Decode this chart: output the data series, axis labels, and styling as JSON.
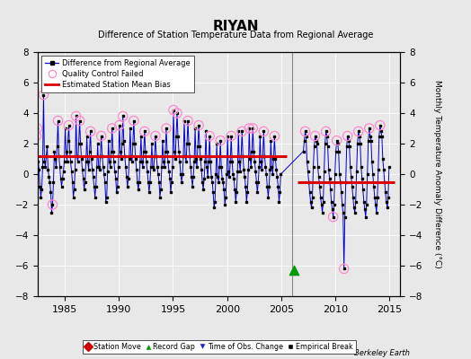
{
  "title": "RIYAN",
  "subtitle": "Difference of Station Temperature Data from Regional Average",
  "ylabel": "Monthly Temperature Anomaly Difference (°C)",
  "xlim": [
    1982.5,
    2016.0
  ],
  "ylim": [
    -8,
    8
  ],
  "yticks": [
    -8,
    -6,
    -4,
    -2,
    0,
    2,
    4,
    6,
    8
  ],
  "xticks": [
    1985,
    1990,
    1995,
    2000,
    2005,
    2010,
    2015
  ],
  "background_color": "#e8e8e8",
  "line_color": "#0000cc",
  "dot_color": "#000000",
  "qc_circle_color": "#ff88cc",
  "bias_color": "#dd0000",
  "vertical_line_x": 2006.0,
  "bias_segments": [
    {
      "x_start": 1982.5,
      "x_end": 2005.5,
      "y": 1.2
    },
    {
      "x_start": 2006.5,
      "x_end": 2015.5,
      "y": -0.55
    }
  ],
  "record_gap_x": 2006.2,
  "record_gap_y": -6.3,
  "watermark": "Berkeley Earth",
  "main_data": [
    [
      1982.042,
      2.8
    ],
    [
      1982.125,
      0.2
    ],
    [
      1982.208,
      -0.3
    ],
    [
      1982.292,
      0.5
    ],
    [
      1982.375,
      2.5
    ],
    [
      1982.458,
      3.0
    ],
    [
      1982.542,
      0.8
    ],
    [
      1982.625,
      0.3
    ],
    [
      1982.708,
      -0.8
    ],
    [
      1982.792,
      -1.5
    ],
    [
      1982.875,
      -1.0
    ],
    [
      1982.958,
      0.5
    ],
    [
      1983.042,
      5.2
    ],
    [
      1983.125,
      0.8
    ],
    [
      1983.208,
      0.5
    ],
    [
      1983.292,
      1.2
    ],
    [
      1983.375,
      1.8
    ],
    [
      1983.458,
      0.3
    ],
    [
      1983.542,
      -0.2
    ],
    [
      1983.625,
      -0.5
    ],
    [
      1983.708,
      -1.2
    ],
    [
      1983.792,
      -2.5
    ],
    [
      1983.875,
      -2.0
    ],
    [
      1983.958,
      -0.5
    ],
    [
      1984.042,
      1.5
    ],
    [
      1984.125,
      1.0
    ],
    [
      1984.208,
      0.5
    ],
    [
      1984.292,
      1.8
    ],
    [
      1984.375,
      3.5
    ],
    [
      1984.458,
      1.2
    ],
    [
      1984.542,
      0.5
    ],
    [
      1984.625,
      -0.3
    ],
    [
      1984.708,
      -0.8
    ],
    [
      1984.792,
      -0.3
    ],
    [
      1984.875,
      0.2
    ],
    [
      1984.958,
      0.8
    ],
    [
      1985.042,
      3.0
    ],
    [
      1985.125,
      1.5
    ],
    [
      1985.208,
      0.8
    ],
    [
      1985.292,
      2.2
    ],
    [
      1985.375,
      3.2
    ],
    [
      1985.458,
      1.5
    ],
    [
      1985.542,
      0.8
    ],
    [
      1985.625,
      0.2
    ],
    [
      1985.708,
      -0.5
    ],
    [
      1985.792,
      -1.5
    ],
    [
      1985.875,
      -1.0
    ],
    [
      1985.958,
      0.3
    ],
    [
      1986.042,
      3.8
    ],
    [
      1986.125,
      1.2
    ],
    [
      1986.208,
      0.8
    ],
    [
      1986.292,
      2.0
    ],
    [
      1986.375,
      3.5
    ],
    [
      1986.458,
      2.0
    ],
    [
      1986.542,
      1.0
    ],
    [
      1986.625,
      0.3
    ],
    [
      1986.708,
      -0.3
    ],
    [
      1986.792,
      -1.0
    ],
    [
      1986.875,
      -0.5
    ],
    [
      1986.958,
      0.8
    ],
    [
      1987.042,
      2.5
    ],
    [
      1987.125,
      0.8
    ],
    [
      1987.208,
      0.3
    ],
    [
      1987.292,
      1.5
    ],
    [
      1987.375,
      2.8
    ],
    [
      1987.458,
      1.0
    ],
    [
      1987.542,
      0.3
    ],
    [
      1987.625,
      -0.2
    ],
    [
      1987.708,
      -0.8
    ],
    [
      1987.792,
      -1.5
    ],
    [
      1987.875,
      -0.8
    ],
    [
      1987.958,
      0.5
    ],
    [
      1988.042,
      2.0
    ],
    [
      1988.125,
      0.5
    ],
    [
      1988.208,
      0.3
    ],
    [
      1988.292,
      1.2
    ],
    [
      1988.375,
      2.5
    ],
    [
      1988.458,
      1.2
    ],
    [
      1988.542,
      0.5
    ],
    [
      1988.625,
      0.0
    ],
    [
      1988.708,
      -0.5
    ],
    [
      1988.792,
      -1.8
    ],
    [
      1988.875,
      -1.5
    ],
    [
      1988.958,
      0.2
    ],
    [
      1989.042,
      2.2
    ],
    [
      1989.125,
      0.8
    ],
    [
      1989.208,
      0.5
    ],
    [
      1989.292,
      1.5
    ],
    [
      1989.375,
      3.0
    ],
    [
      1989.458,
      1.5
    ],
    [
      1989.542,
      0.8
    ],
    [
      1989.625,
      0.2
    ],
    [
      1989.708,
      -0.3
    ],
    [
      1989.792,
      -1.2
    ],
    [
      1989.875,
      -0.8
    ],
    [
      1989.958,
      0.5
    ],
    [
      1990.042,
      3.2
    ],
    [
      1990.125,
      1.5
    ],
    [
      1990.208,
      1.0
    ],
    [
      1990.292,
      2.0
    ],
    [
      1990.375,
      3.8
    ],
    [
      1990.458,
      2.2
    ],
    [
      1990.542,
      1.2
    ],
    [
      1990.625,
      0.5
    ],
    [
      1990.708,
      -0.2
    ],
    [
      1990.792,
      -0.8
    ],
    [
      1990.875,
      -0.3
    ],
    [
      1990.958,
      1.0
    ],
    [
      1991.042,
      3.0
    ],
    [
      1991.125,
      1.2
    ],
    [
      1991.208,
      0.8
    ],
    [
      1991.292,
      2.0
    ],
    [
      1991.375,
      3.5
    ],
    [
      1991.458,
      2.0
    ],
    [
      1991.542,
      1.0
    ],
    [
      1991.625,
      0.3
    ],
    [
      1991.708,
      -0.5
    ],
    [
      1991.792,
      -1.0
    ],
    [
      1991.875,
      -0.5
    ],
    [
      1991.958,
      0.8
    ],
    [
      1992.042,
      2.5
    ],
    [
      1992.125,
      0.8
    ],
    [
      1992.208,
      0.5
    ],
    [
      1992.292,
      1.5
    ],
    [
      1992.375,
      2.8
    ],
    [
      1992.458,
      1.5
    ],
    [
      1992.542,
      0.8
    ],
    [
      1992.625,
      0.2
    ],
    [
      1992.708,
      -0.5
    ],
    [
      1992.792,
      -1.2
    ],
    [
      1992.875,
      -0.5
    ],
    [
      1992.958,
      0.5
    ],
    [
      1993.042,
      2.0
    ],
    [
      1993.125,
      0.5
    ],
    [
      1993.208,
      0.3
    ],
    [
      1993.292,
      1.2
    ],
    [
      1993.375,
      2.5
    ],
    [
      1993.458,
      1.2
    ],
    [
      1993.542,
      0.5
    ],
    [
      1993.625,
      0.0
    ],
    [
      1993.708,
      -0.5
    ],
    [
      1993.792,
      -1.5
    ],
    [
      1993.875,
      -1.0
    ],
    [
      1993.958,
      0.5
    ],
    [
      1994.042,
      2.2
    ],
    [
      1994.125,
      0.8
    ],
    [
      1994.208,
      0.5
    ],
    [
      1994.292,
      1.5
    ],
    [
      1994.375,
      3.0
    ],
    [
      1994.458,
      1.5
    ],
    [
      1994.542,
      0.8
    ],
    [
      1994.625,
      0.2
    ],
    [
      1994.708,
      -0.3
    ],
    [
      1994.792,
      -1.2
    ],
    [
      1994.875,
      -0.5
    ],
    [
      1994.958,
      0.5
    ],
    [
      1995.042,
      4.2
    ],
    [
      1995.125,
      1.5
    ],
    [
      1995.208,
      1.0
    ],
    [
      1995.292,
      2.5
    ],
    [
      1995.375,
      4.0
    ],
    [
      1995.458,
      2.5
    ],
    [
      1995.542,
      1.5
    ],
    [
      1995.625,
      0.8
    ],
    [
      1995.708,
      0.0
    ],
    [
      1995.792,
      -0.5
    ],
    [
      1995.875,
      0.0
    ],
    [
      1995.958,
      1.2
    ],
    [
      1996.042,
      3.5
    ],
    [
      1996.125,
      1.2
    ],
    [
      1996.208,
      0.8
    ],
    [
      1996.292,
      2.0
    ],
    [
      1996.375,
      3.5
    ],
    [
      1996.458,
      2.0
    ],
    [
      1996.542,
      1.2
    ],
    [
      1996.625,
      0.5
    ],
    [
      1996.708,
      -0.2
    ],
    [
      1996.792,
      -0.8
    ],
    [
      1996.875,
      -0.2
    ],
    [
      1996.958,
      0.8
    ],
    [
      1997.042,
      3.0
    ],
    [
      1997.125,
      1.0
    ],
    [
      1997.208,
      0.5
    ],
    [
      1997.292,
      1.8
    ],
    [
      1997.375,
      3.2
    ],
    [
      1997.458,
      1.8
    ],
    [
      1997.542,
      1.0
    ],
    [
      1997.625,
      0.3
    ],
    [
      1997.708,
      -0.5
    ],
    [
      1997.792,
      -1.0
    ],
    [
      1997.875,
      -0.3
    ],
    [
      1997.958,
      0.8
    ],
    [
      1998.042,
      2.8
    ],
    [
      1998.125,
      0.5
    ],
    [
      1998.208,
      -0.2
    ],
    [
      1998.292,
      0.8
    ],
    [
      1998.375,
      2.5
    ],
    [
      1998.458,
      0.8
    ],
    [
      1998.542,
      -0.2
    ],
    [
      1998.625,
      -0.5
    ],
    [
      1998.708,
      -1.2
    ],
    [
      1998.792,
      -2.2
    ],
    [
      1998.875,
      -1.8
    ],
    [
      1998.958,
      0.0
    ],
    [
      1999.042,
      2.0
    ],
    [
      1999.125,
      -0.2
    ],
    [
      1999.208,
      -0.5
    ],
    [
      1999.292,
      0.5
    ],
    [
      1999.375,
      2.2
    ],
    [
      1999.458,
      0.5
    ],
    [
      1999.542,
      -0.3
    ],
    [
      1999.625,
      -0.5
    ],
    [
      1999.708,
      -1.0
    ],
    [
      1999.792,
      -2.0
    ],
    [
      1999.875,
      -1.5
    ],
    [
      1999.958,
      0.0
    ],
    [
      2000.042,
      2.5
    ],
    [
      2000.125,
      0.2
    ],
    [
      2000.208,
      -0.2
    ],
    [
      2000.292,
      0.8
    ],
    [
      2000.375,
      2.5
    ],
    [
      2000.458,
      0.8
    ],
    [
      2000.542,
      0.0
    ],
    [
      2000.625,
      -0.3
    ],
    [
      2000.708,
      -1.0
    ],
    [
      2000.792,
      -1.8
    ],
    [
      2000.875,
      -1.2
    ],
    [
      2000.958,
      0.2
    ],
    [
      2001.042,
      2.8
    ],
    [
      2001.125,
      0.8
    ],
    [
      2001.208,
      0.2
    ],
    [
      2001.292,
      1.2
    ],
    [
      2001.375,
      2.8
    ],
    [
      2001.458,
      1.2
    ],
    [
      2001.542,
      0.3
    ],
    [
      2001.625,
      -0.2
    ],
    [
      2001.708,
      -0.8
    ],
    [
      2001.792,
      -1.8
    ],
    [
      2001.875,
      -1.2
    ],
    [
      2001.958,
      0.3
    ],
    [
      2002.042,
      3.0
    ],
    [
      2002.125,
      1.0
    ],
    [
      2002.208,
      0.5
    ],
    [
      2002.292,
      1.5
    ],
    [
      2002.375,
      3.0
    ],
    [
      2002.458,
      1.5
    ],
    [
      2002.542,
      0.8
    ],
    [
      2002.625,
      0.2
    ],
    [
      2002.708,
      -0.5
    ],
    [
      2002.792,
      -1.2
    ],
    [
      2002.875,
      -0.5
    ],
    [
      2002.958,
      0.5
    ],
    [
      2003.042,
      2.5
    ],
    [
      2003.125,
      0.8
    ],
    [
      2003.208,
      0.3
    ],
    [
      2003.292,
      1.2
    ],
    [
      2003.375,
      2.8
    ],
    [
      2003.458,
      1.2
    ],
    [
      2003.542,
      0.5
    ],
    [
      2003.625,
      0.0
    ],
    [
      2003.708,
      -0.8
    ],
    [
      2003.792,
      -1.5
    ],
    [
      2003.875,
      -0.8
    ],
    [
      2003.958,
      0.3
    ],
    [
      2004.042,
      2.2
    ],
    [
      2004.125,
      0.5
    ],
    [
      2004.208,
      0.0
    ],
    [
      2004.292,
      1.0
    ],
    [
      2004.375,
      2.5
    ],
    [
      2004.458,
      1.0
    ],
    [
      2004.542,
      0.3
    ],
    [
      2004.625,
      -0.2
    ],
    [
      2004.708,
      -0.8
    ],
    [
      2004.792,
      -1.8
    ],
    [
      2004.875,
      -1.2
    ],
    [
      2004.958,
      0.0
    ],
    [
      2007.042,
      1.5
    ],
    [
      2007.125,
      2.2
    ],
    [
      2007.208,
      2.8
    ],
    [
      2007.292,
      2.5
    ],
    [
      2007.375,
      0.8
    ],
    [
      2007.458,
      0.2
    ],
    [
      2007.542,
      -0.5
    ],
    [
      2007.625,
      -1.2
    ],
    [
      2007.708,
      -1.8
    ],
    [
      2007.792,
      -2.2
    ],
    [
      2007.875,
      -1.5
    ],
    [
      2007.958,
      0.5
    ],
    [
      2008.042,
      1.8
    ],
    [
      2008.125,
      2.5
    ],
    [
      2008.208,
      2.2
    ],
    [
      2008.292,
      2.0
    ],
    [
      2008.375,
      0.5
    ],
    [
      2008.458,
      -0.2
    ],
    [
      2008.542,
      -0.8
    ],
    [
      2008.625,
      -1.5
    ],
    [
      2008.708,
      -2.0
    ],
    [
      2008.792,
      -2.5
    ],
    [
      2008.875,
      -1.8
    ],
    [
      2008.958,
      0.2
    ],
    [
      2009.042,
      2.0
    ],
    [
      2009.125,
      2.8
    ],
    [
      2009.208,
      2.5
    ],
    [
      2009.292,
      1.8
    ],
    [
      2009.375,
      0.3
    ],
    [
      2009.458,
      -0.3
    ],
    [
      2009.542,
      -1.0
    ],
    [
      2009.625,
      -1.8
    ],
    [
      2009.708,
      -2.3
    ],
    [
      2009.792,
      -2.8
    ],
    [
      2009.875,
      -2.0
    ],
    [
      2009.958,
      0.0
    ],
    [
      2010.042,
      1.5
    ],
    [
      2010.125,
      2.2
    ],
    [
      2010.208,
      2.0
    ],
    [
      2010.292,
      1.5
    ],
    [
      2010.375,
      0.0
    ],
    [
      2010.458,
      -0.5
    ],
    [
      2010.542,
      -1.2
    ],
    [
      2010.625,
      -2.0
    ],
    [
      2010.708,
      -2.5
    ],
    [
      2010.792,
      -6.2
    ],
    [
      2010.875,
      -2.8
    ],
    [
      2010.958,
      -0.5
    ],
    [
      2011.042,
      1.8
    ],
    [
      2011.125,
      2.5
    ],
    [
      2011.208,
      2.2
    ],
    [
      2011.292,
      1.8
    ],
    [
      2011.375,
      0.5
    ],
    [
      2011.458,
      -0.2
    ],
    [
      2011.542,
      -0.8
    ],
    [
      2011.625,
      -1.5
    ],
    [
      2011.708,
      -2.2
    ],
    [
      2011.792,
      -2.5
    ],
    [
      2011.875,
      -1.8
    ],
    [
      2011.958,
      0.2
    ],
    [
      2012.042,
      2.0
    ],
    [
      2012.125,
      2.8
    ],
    [
      2012.208,
      2.5
    ],
    [
      2012.292,
      2.0
    ],
    [
      2012.375,
      0.5
    ],
    [
      2012.458,
      -0.3
    ],
    [
      2012.542,
      -1.0
    ],
    [
      2012.625,
      -1.8
    ],
    [
      2012.708,
      -2.3
    ],
    [
      2012.792,
      -2.8
    ],
    [
      2012.875,
      -2.0
    ],
    [
      2012.958,
      0.0
    ],
    [
      2013.042,
      2.2
    ],
    [
      2013.125,
      3.0
    ],
    [
      2013.208,
      2.5
    ],
    [
      2013.292,
      2.2
    ],
    [
      2013.375,
      0.8
    ],
    [
      2013.458,
      0.0
    ],
    [
      2013.542,
      -0.8
    ],
    [
      2013.625,
      -1.5
    ],
    [
      2013.708,
      -2.0
    ],
    [
      2013.792,
      -2.5
    ],
    [
      2013.875,
      -1.5
    ],
    [
      2013.958,
      0.3
    ],
    [
      2014.042,
      2.5
    ],
    [
      2014.125,
      3.2
    ],
    [
      2014.208,
      2.8
    ],
    [
      2014.292,
      2.5
    ],
    [
      2014.375,
      1.0
    ],
    [
      2014.458,
      0.3
    ],
    [
      2014.542,
      -0.5
    ],
    [
      2014.625,
      -1.2
    ],
    [
      2014.708,
      -1.8
    ],
    [
      2014.792,
      -2.2
    ],
    [
      2014.875,
      -1.5
    ],
    [
      2014.958,
      0.5
    ]
  ],
  "qc_failed_points": [
    [
      1982.375,
      2.5
    ],
    [
      1982.458,
      3.0
    ],
    [
      1983.042,
      5.2
    ],
    [
      1983.875,
      -2.0
    ],
    [
      1984.375,
      3.5
    ],
    [
      1985.375,
      3.2
    ],
    [
      1986.042,
      3.8
    ],
    [
      1986.375,
      3.5
    ],
    [
      1987.375,
      2.8
    ],
    [
      1988.375,
      2.5
    ],
    [
      1989.375,
      3.0
    ],
    [
      1990.042,
      3.2
    ],
    [
      1990.375,
      3.8
    ],
    [
      1991.375,
      3.5
    ],
    [
      1992.375,
      2.8
    ],
    [
      1993.375,
      2.5
    ],
    [
      1994.375,
      3.0
    ],
    [
      1995.042,
      4.2
    ],
    [
      1995.375,
      4.0
    ],
    [
      1996.375,
      3.5
    ],
    [
      1997.375,
      3.2
    ],
    [
      1998.375,
      2.5
    ],
    [
      1999.375,
      2.2
    ],
    [
      2000.375,
      2.5
    ],
    [
      2001.375,
      2.8
    ],
    [
      2002.042,
      3.0
    ],
    [
      2002.375,
      3.0
    ],
    [
      2003.375,
      2.8
    ],
    [
      2004.375,
      2.5
    ],
    [
      2007.208,
      2.8
    ],
    [
      2008.125,
      2.5
    ],
    [
      2009.125,
      2.8
    ],
    [
      2009.792,
      -2.8
    ],
    [
      2010.125,
      2.2
    ],
    [
      2010.792,
      -6.2
    ],
    [
      2011.125,
      2.5
    ],
    [
      2012.125,
      2.8
    ],
    [
      2013.125,
      3.0
    ],
    [
      2014.125,
      3.2
    ]
  ]
}
